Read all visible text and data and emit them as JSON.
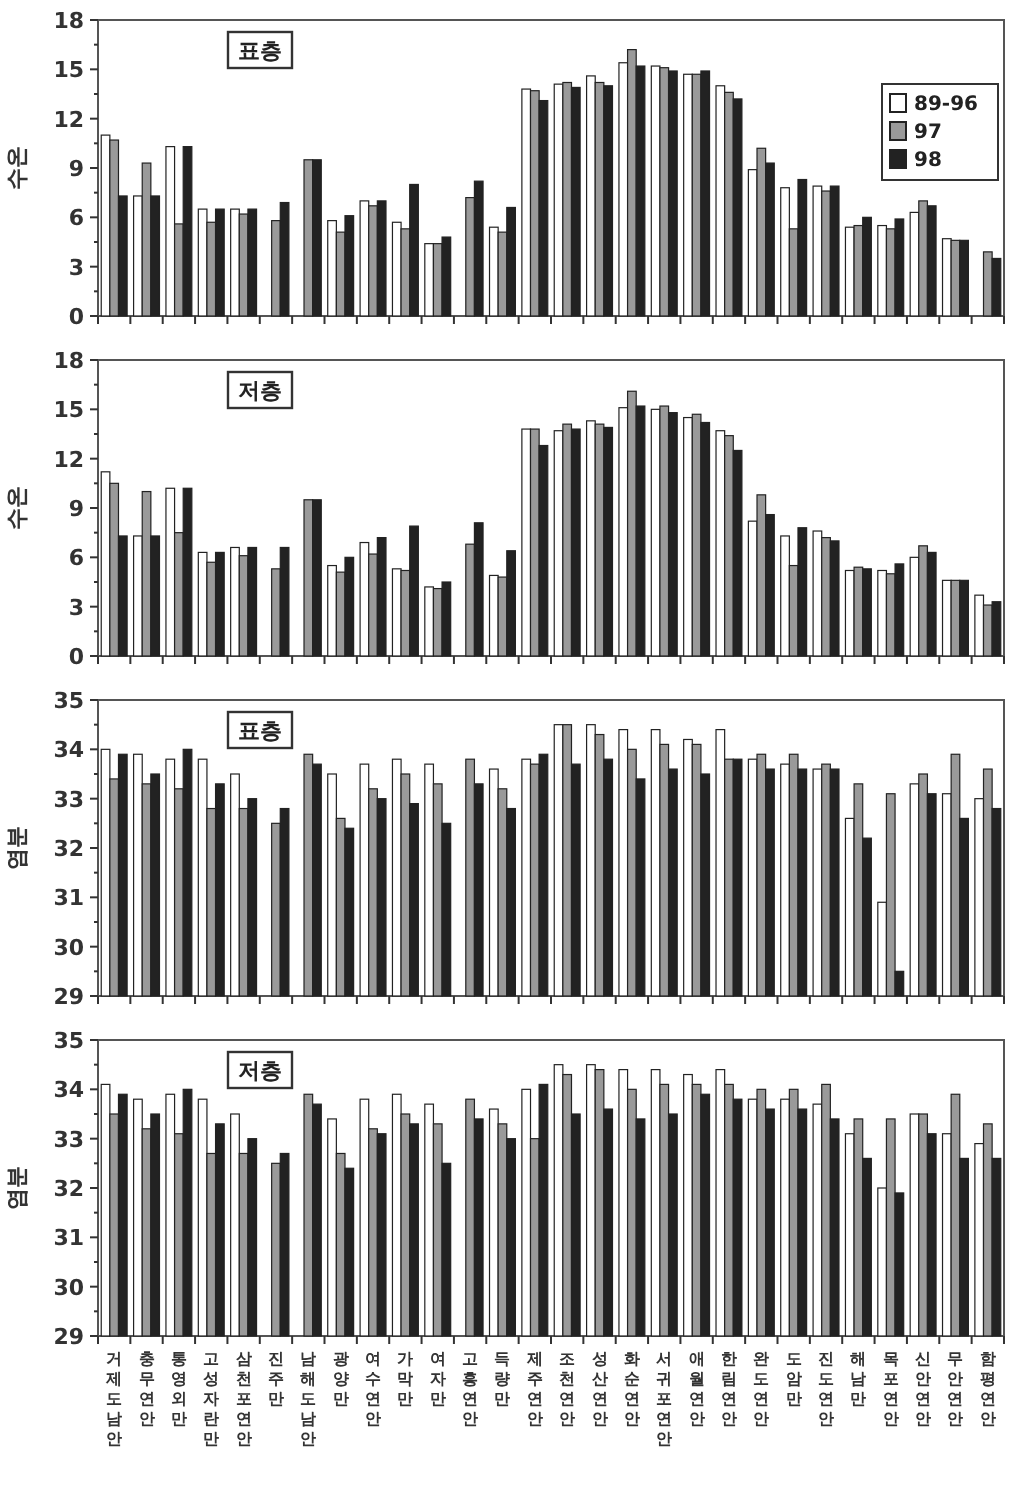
{
  "chart_data": [
    {
      "type": "bar",
      "ylabel": "수온",
      "annotations": [
        "표층"
      ],
      "legend": "top right",
      "tick_labels": "y",
      "ylim": [
        0,
        18
      ],
      "yticks": [
        0,
        3,
        6,
        9,
        12,
        15,
        18
      ],
      "categories": [
        "거제도남안",
        "충무연안",
        "통영외만",
        "고성자란만",
        "삼천포연안",
        "진주만",
        "남해도남안",
        "광양만",
        "여수연안",
        "가막만",
        "여자만",
        "고흥연안",
        "득량만",
        "제주연안",
        "조천연안",
        "성산연안",
        "화순연안",
        "서귀포연안",
        "애월연안",
        "한림연안",
        "완도연안",
        "도암만",
        "진도연안",
        "해남만",
        "목포연안",
        "신안연안",
        "무안연안",
        "함평연안"
      ],
      "series": [
        {
          "name": "89-96",
          "color": "#ffffff",
          "values": [
            11.0,
            7.3,
            10.3,
            6.5,
            6.5,
            null,
            null,
            5.8,
            7.0,
            5.7,
            4.4,
            null,
            5.4,
            13.8,
            14.1,
            14.6,
            15.4,
            15.2,
            14.7,
            14.0,
            8.9,
            7.8,
            7.9,
            5.4,
            5.5,
            6.3,
            4.7,
            null
          ]
        },
        {
          "name": "97",
          "color": "#9a9a9a",
          "values": [
            10.7,
            9.3,
            5.6,
            5.7,
            6.2,
            5.8,
            9.5,
            5.1,
            6.7,
            5.3,
            4.4,
            7.2,
            5.1,
            13.7,
            14.2,
            14.2,
            16.2,
            15.1,
            14.7,
            13.6,
            10.2,
            5.3,
            7.6,
            5.5,
            5.3,
            7.0,
            4.6,
            3.9
          ]
        },
        {
          "name": "98",
          "color": "#222222",
          "values": [
            7.3,
            7.3,
            10.3,
            6.5,
            6.5,
            6.9,
            9.5,
            6.1,
            7.0,
            8.0,
            4.8,
            8.2,
            6.6,
            13.1,
            13.9,
            14.0,
            15.2,
            14.9,
            14.9,
            13.2,
            9.3,
            8.3,
            7.9,
            6.0,
            5.9,
            6.7,
            4.6,
            3.5
          ]
        }
      ]
    },
    {
      "type": "bar",
      "ylabel": "수온",
      "annotations": [
        "저층"
      ],
      "tick_labels": "y",
      "ylim": [
        0,
        18
      ],
      "yticks": [
        0,
        3,
        6,
        9,
        12,
        15,
        18
      ],
      "categories": [
        "거제도남안",
        "충무연안",
        "통영외만",
        "고성자란만",
        "삼천포연안",
        "진주만",
        "남해도남안",
        "광양만",
        "여수연안",
        "가막만",
        "여자만",
        "고흥연안",
        "득량만",
        "제주연안",
        "조천연안",
        "성산연안",
        "화순연안",
        "서귀포연안",
        "애월연안",
        "한림연안",
        "완도연안",
        "도암만",
        "진도연안",
        "해남만",
        "목포연안",
        "신안연안",
        "무안연안",
        "함평연안"
      ],
      "series": [
        {
          "color": "#ffffff",
          "values": [
            11.2,
            7.3,
            10.2,
            6.3,
            6.6,
            null,
            null,
            5.5,
            6.9,
            5.3,
            4.2,
            null,
            4.9,
            13.8,
            13.7,
            14.3,
            15.1,
            15.0,
            14.5,
            13.7,
            8.2,
            7.3,
            7.6,
            5.2,
            5.2,
            6.0,
            4.6,
            3.7
          ]
        },
        {
          "color": "#9a9a9a",
          "values": [
            10.5,
            10.0,
            7.5,
            5.7,
            6.1,
            5.3,
            9.5,
            5.1,
            6.2,
            5.2,
            4.1,
            6.8,
            4.8,
            13.8,
            14.1,
            14.1,
            16.1,
            15.2,
            14.7,
            13.4,
            9.8,
            5.5,
            7.2,
            5.4,
            5.0,
            6.7,
            4.6,
            3.1
          ]
        },
        {
          "color": "#222222",
          "values": [
            7.3,
            7.3,
            10.2,
            6.3,
            6.6,
            6.6,
            9.5,
            6.0,
            7.2,
            7.9,
            4.5,
            8.1,
            6.4,
            12.8,
            13.8,
            13.9,
            15.2,
            14.8,
            14.2,
            12.5,
            8.6,
            7.8,
            7.0,
            5.3,
            5.6,
            6.3,
            4.6,
            3.3
          ]
        }
      ]
    },
    {
      "type": "bar",
      "ylabel": "염분",
      "annotations": [
        "표층"
      ],
      "tick_labels": "y",
      "ylim": [
        29,
        35
      ],
      "yticks": [
        29,
        30,
        31,
        32,
        33,
        34,
        35
      ],
      "categories": [
        "거제도남안",
        "충무연안",
        "통영외만",
        "고성자란만",
        "삼천포연안",
        "진주만",
        "남해도남안",
        "광양만",
        "여수연안",
        "가막만",
        "여자만",
        "고흥연안",
        "득량만",
        "제주연안",
        "조천연안",
        "성산연안",
        "화순연안",
        "서귀포연안",
        "애월연안",
        "한림연안",
        "완도연안",
        "도암만",
        "진도연안",
        "해남만",
        "목포연안",
        "신안연안",
        "무안연안",
        "함평연안"
      ],
      "series": [
        {
          "color": "#ffffff",
          "values": [
            34.0,
            33.9,
            33.8,
            33.8,
            33.5,
            null,
            null,
            33.5,
            33.7,
            33.8,
            33.7,
            null,
            33.6,
            33.8,
            34.5,
            34.5,
            34.4,
            34.4,
            34.2,
            34.4,
            33.8,
            33.7,
            33.6,
            32.6,
            30.9,
            33.3,
            33.1,
            33.0
          ]
        },
        {
          "color": "#9a9a9a",
          "values": [
            33.4,
            33.3,
            33.2,
            32.8,
            32.8,
            32.5,
            33.9,
            32.6,
            33.2,
            33.5,
            33.3,
            33.8,
            33.2,
            33.7,
            34.5,
            34.3,
            34.0,
            34.1,
            34.1,
            33.8,
            33.9,
            33.9,
            33.7,
            33.3,
            33.1,
            33.5,
            33.9,
            33.6
          ]
        },
        {
          "color": "#222222",
          "values": [
            33.9,
            33.5,
            34.0,
            33.3,
            33.0,
            32.8,
            33.7,
            32.4,
            33.0,
            32.9,
            32.5,
            33.3,
            32.8,
            33.9,
            33.7,
            33.8,
            33.4,
            33.6,
            33.5,
            33.8,
            33.6,
            33.6,
            33.6,
            32.2,
            29.5,
            33.1,
            32.6,
            32.8
          ]
        }
      ]
    },
    {
      "type": "bar",
      "ylabel": "염분",
      "annotations": [
        "저층"
      ],
      "ylim": [
        29,
        35
      ],
      "yticks": [
        29,
        30,
        31,
        32,
        33,
        34,
        35
      ],
      "categories": [
        "거제도남안",
        "충무연안",
        "통영외만",
        "고성자란만",
        "삼천포연안",
        "진주만",
        "남해도남안",
        "광양만",
        "여수연안",
        "가막만",
        "여자만",
        "고흥연안",
        "득량만",
        "제주연안",
        "조천연안",
        "성산연안",
        "화순연안",
        "서귀포연안",
        "애월연안",
        "한림연안",
        "완도연안",
        "도암만",
        "진도연안",
        "해남만",
        "목포연안",
        "신안연안",
        "무안연안",
        "함평연안"
      ],
      "series": [
        {
          "color": "#ffffff",
          "values": [
            34.1,
            33.8,
            33.9,
            33.8,
            33.5,
            null,
            null,
            33.4,
            33.8,
            33.9,
            33.7,
            null,
            33.6,
            34.0,
            34.5,
            34.5,
            34.4,
            34.4,
            34.3,
            34.4,
            33.8,
            33.8,
            33.7,
            33.1,
            32.0,
            33.5,
            33.1,
            32.9
          ]
        },
        {
          "color": "#9a9a9a",
          "values": [
            33.5,
            33.2,
            33.1,
            32.7,
            32.7,
            32.5,
            33.9,
            32.7,
            33.2,
            33.5,
            33.3,
            33.8,
            33.3,
            33.0,
            34.3,
            34.4,
            34.0,
            34.1,
            34.1,
            34.1,
            34.0,
            34.0,
            34.1,
            33.4,
            33.4,
            33.5,
            33.9,
            33.3
          ]
        },
        {
          "color": "#222222",
          "values": [
            33.9,
            33.5,
            34.0,
            33.3,
            33.0,
            32.7,
            33.7,
            32.4,
            33.1,
            33.3,
            32.5,
            33.4,
            33.0,
            34.1,
            33.5,
            33.6,
            33.4,
            33.5,
            33.9,
            33.8,
            33.6,
            33.6,
            33.4,
            32.6,
            31.9,
            33.1,
            32.6,
            32.6
          ]
        }
      ]
    }
  ]
}
